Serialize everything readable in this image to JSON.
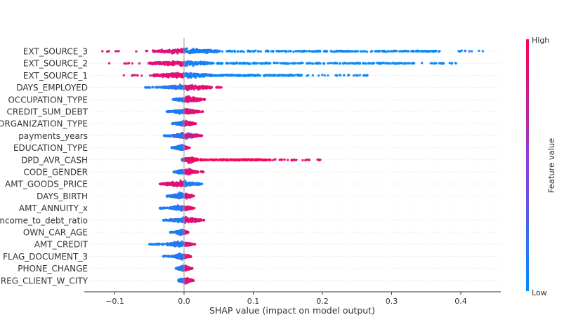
{
  "chart_data": {
    "type": "scatter",
    "subtype": "shap-beeswarm",
    "xlabel": "SHAP value (impact on model output)",
    "xlim": [
      -0.145,
      0.46
    ],
    "xticks": [
      -0.1,
      0.0,
      0.1,
      0.2,
      0.3,
      0.4
    ],
    "xtick_labels": [
      "−0.1",
      "0.0",
      "0.1",
      "0.2",
      "0.3",
      "0.4"
    ],
    "grid": false,
    "colorbar": {
      "label": "Feature value",
      "high_label": "High",
      "low_label": "Low",
      "high_color": "#ff0052",
      "low_color": "#008bfb",
      "mid_color": "#8a3fd8"
    },
    "features": [
      {
        "name": "EXT_SOURCE_3",
        "min": -0.118,
        "max": 0.432,
        "core": [
          -0.045,
          0.05
        ],
        "wing_low": 0.0,
        "wing_high": 0.37,
        "low_side": "high"
      },
      {
        "name": "EXT_SOURCE_2",
        "min": -0.108,
        "max": 0.393,
        "core": [
          -0.05,
          0.04
        ],
        "wing_low": 0.0,
        "wing_high": 0.33,
        "low_side": "high"
      },
      {
        "name": "EXT_SOURCE_1",
        "min": -0.087,
        "max": 0.265,
        "core": [
          -0.045,
          0.04
        ],
        "wing_low": 0.0,
        "wing_high": 0.17,
        "low_side": "high"
      },
      {
        "name": "DAYS_EMPLOYED",
        "min": -0.056,
        "max": 0.054,
        "core": [
          -0.03,
          0.04
        ],
        "wing_low": 0.0,
        "wing_high": 0.0,
        "low_side": "low"
      },
      {
        "name": "OCCUPATION_TYPE",
        "min": -0.016,
        "max": 0.03,
        "core": [
          -0.012,
          0.025
        ],
        "wing_low": 0.0,
        "wing_high": 0.0,
        "low_side": "low"
      },
      {
        "name": "CREDIT_SUM_DEBT",
        "min": -0.025,
        "max": 0.027,
        "core": [
          -0.015,
          0.02
        ],
        "wing_low": 0.0,
        "wing_high": 0.0,
        "low_side": "low"
      },
      {
        "name": "ORGANIZATION_TYPE",
        "min": -0.017,
        "max": 0.017,
        "core": [
          -0.012,
          0.014
        ],
        "wing_low": 0.0,
        "wing_high": 0.0,
        "low_side": "low"
      },
      {
        "name": "payments_years",
        "min": -0.029,
        "max": 0.026,
        "core": [
          -0.016,
          0.022
        ],
        "wing_low": 0.0,
        "wing_high": 0.0,
        "low_side": "mixed"
      },
      {
        "name": "EDUCATION_TYPE",
        "min": -0.018,
        "max": 0.008,
        "core": [
          -0.014,
          0.006
        ],
        "wing_low": 0.0,
        "wing_high": 0.0,
        "low_side": "low"
      },
      {
        "name": "DPD_AVR_CASH",
        "min": -0.003,
        "max": 0.197,
        "core": [
          -0.003,
          0.02
        ],
        "wing_low": 0.0,
        "wing_high": 0.125,
        "low_side": "low"
      },
      {
        "name": "CODE_GENDER",
        "min": -0.015,
        "max": 0.028,
        "core": [
          -0.012,
          0.02
        ],
        "wing_low": 0.0,
        "wing_high": 0.0,
        "low_side": "low"
      },
      {
        "name": "AMT_GOODS_PRICE",
        "min": -0.035,
        "max": 0.026,
        "core": [
          -0.03,
          0.022
        ],
        "wing_low": 0.0,
        "wing_high": 0.0,
        "low_side": "high"
      },
      {
        "name": "DAYS_BIRTH",
        "min": -0.025,
        "max": 0.014,
        "core": [
          -0.02,
          0.012
        ],
        "wing_low": 0.0,
        "wing_high": 0.0,
        "low_side": "low"
      },
      {
        "name": "AMT_ANNUITY_x",
        "min": -0.035,
        "max": 0.015,
        "core": [
          -0.02,
          0.012
        ],
        "wing_low": 0.0,
        "wing_high": 0.0,
        "low_side": "low"
      },
      {
        "name": "income_to_debt_ratio",
        "min": -0.03,
        "max": 0.029,
        "core": [
          -0.02,
          0.025
        ],
        "wing_low": 0.0,
        "wing_high": 0.0,
        "low_side": "low"
      },
      {
        "name": "OWN_CAR_AGE",
        "min": -0.02,
        "max": 0.006,
        "core": [
          -0.012,
          0.005
        ],
        "wing_low": 0.0,
        "wing_high": 0.0,
        "low_side": "low"
      },
      {
        "name": "AMT_CREDIT",
        "min": -0.05,
        "max": 0.016,
        "core": [
          -0.025,
          0.012
        ],
        "wing_low": 0.0,
        "wing_high": 0.0,
        "low_side": "low"
      },
      {
        "name": "FLAG_DOCUMENT_3",
        "min": -0.03,
        "max": 0.01,
        "core": [
          -0.015,
          0.008
        ],
        "wing_low": 0.0,
        "wing_high": 0.0,
        "low_side": "low"
      },
      {
        "name": "PHONE_CHANGE",
        "min": -0.012,
        "max": 0.012,
        "core": [
          -0.01,
          0.01
        ],
        "wing_low": 0.0,
        "wing_high": 0.0,
        "low_side": "low"
      },
      {
        "name": "REG_CLIENT_W_CITY",
        "min": -0.008,
        "max": 0.014,
        "core": [
          -0.008,
          0.012
        ],
        "wing_low": 0.0,
        "wing_high": 0.0,
        "low_side": "low"
      }
    ]
  }
}
